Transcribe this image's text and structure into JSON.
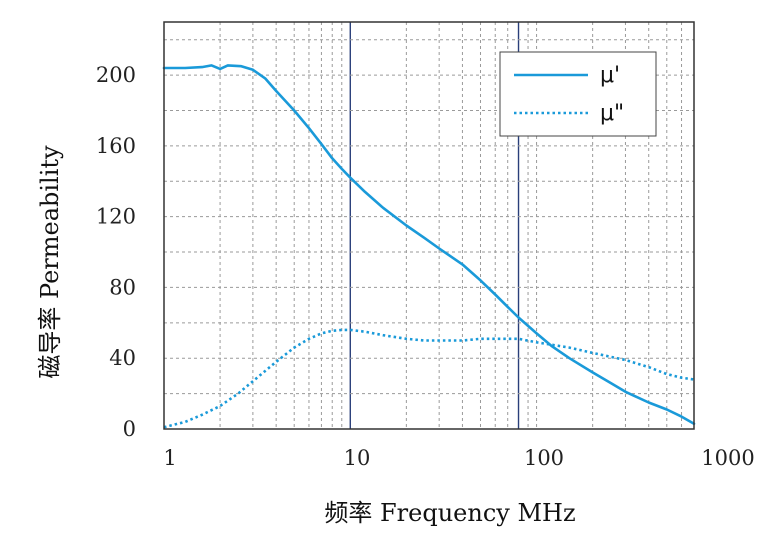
{
  "chart_data": {
    "type": "line",
    "title": "",
    "xlabel": "频率 Frequency MHz",
    "ylabel": "磁导率 Permeability",
    "x_scale": "log",
    "xlim": [
      1,
      700
    ],
    "ylim": [
      0,
      230
    ],
    "x_ticks": [
      {
        "value": 1,
        "label": "1"
      },
      {
        "value": 10,
        "label": "10"
      },
      {
        "value": 100,
        "label": "100"
      },
      {
        "value": 1000,
        "label": "1000"
      }
    ],
    "y_ticks": [
      {
        "value": 0,
        "label": "0"
      },
      {
        "value": 40,
        "label": "40"
      },
      {
        "value": 80,
        "label": "80"
      },
      {
        "value": 120,
        "label": "120"
      },
      {
        "value": 160,
        "label": "160"
      },
      {
        "value": 200,
        "label": "200"
      }
    ],
    "grid": "dashed",
    "legend_position": "top-right",
    "series": [
      {
        "name": "μ'",
        "style": "solid",
        "color": "#1a9ad9",
        "points": [
          [
            1,
            204
          ],
          [
            1.3,
            204
          ],
          [
            1.6,
            204.5
          ],
          [
            1.8,
            205.5
          ],
          [
            2.0,
            203.5
          ],
          [
            2.2,
            205.5
          ],
          [
            2.6,
            205
          ],
          [
            3.0,
            203
          ],
          [
            3.5,
            198
          ],
          [
            4.0,
            191
          ],
          [
            5.0,
            180
          ],
          [
            6.0,
            170
          ],
          [
            7.0,
            161
          ],
          [
            8.0,
            153
          ],
          [
            9.0,
            147
          ],
          [
            10,
            142
          ],
          [
            12,
            134
          ],
          [
            15,
            125
          ],
          [
            20,
            115
          ],
          [
            25,
            108
          ],
          [
            30,
            102
          ],
          [
            40,
            93
          ],
          [
            50,
            84
          ],
          [
            60,
            76
          ],
          [
            70,
            69
          ],
          [
            80,
            63
          ],
          [
            100,
            54
          ],
          [
            120,
            47
          ],
          [
            150,
            40
          ],
          [
            200,
            32
          ],
          [
            250,
            26
          ],
          [
            300,
            21
          ],
          [
            400,
            15
          ],
          [
            500,
            11
          ],
          [
            600,
            7
          ],
          [
            700,
            3
          ]
        ]
      },
      {
        "name": "μ\"",
        "style": "dotted",
        "color": "#1a9ad9",
        "points": [
          [
            1,
            1
          ],
          [
            1.3,
            4
          ],
          [
            1.6,
            8
          ],
          [
            2.0,
            13
          ],
          [
            2.5,
            20
          ],
          [
            3.0,
            27
          ],
          [
            4.0,
            38
          ],
          [
            5.0,
            46
          ],
          [
            6.0,
            51
          ],
          [
            7.0,
            54
          ],
          [
            8.0,
            55.5
          ],
          [
            9.0,
            56
          ],
          [
            10,
            56
          ],
          [
            12,
            55
          ],
          [
            15,
            53
          ],
          [
            20,
            51
          ],
          [
            25,
            50
          ],
          [
            30,
            50
          ],
          [
            40,
            50
          ],
          [
            50,
            51
          ],
          [
            60,
            51
          ],
          [
            70,
            51
          ],
          [
            80,
            51
          ],
          [
            100,
            49
          ],
          [
            150,
            46
          ],
          [
            200,
            43
          ],
          [
            300,
            39
          ],
          [
            400,
            35
          ],
          [
            500,
            31
          ],
          [
            600,
            29
          ],
          [
            700,
            28
          ]
        ]
      }
    ]
  }
}
